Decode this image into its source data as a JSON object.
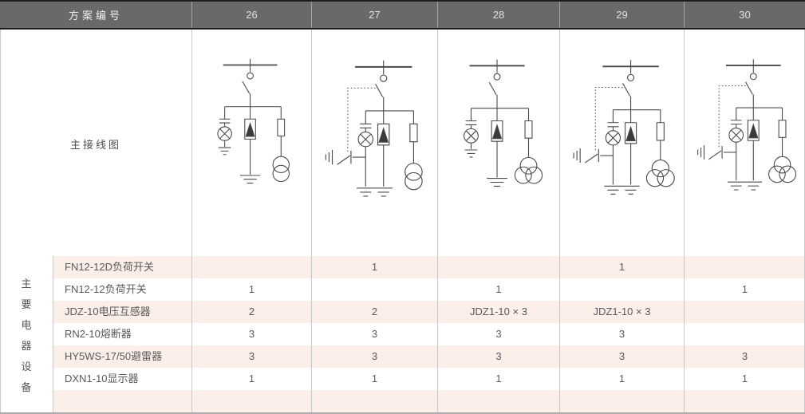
{
  "header": {
    "label": "方案编号",
    "schemes": [
      "26",
      "27",
      "28",
      "29",
      "30"
    ]
  },
  "main_diagram_label": "主接线图",
  "equipment": {
    "section_label": "主要电器设备",
    "section_label_chars": [
      "主",
      "要",
      "电",
      "器",
      "设",
      "备"
    ],
    "rows": [
      {
        "name": "FN12-12D负荷开关",
        "values": [
          "",
          "1",
          "",
          "1",
          ""
        ]
      },
      {
        "name": "FN12-12负荷开关",
        "values": [
          "1",
          "",
          "1",
          "",
          "1"
        ]
      },
      {
        "name": "JDZ-10电压互感器",
        "values": [
          "2",
          "2",
          "JDZ1-10 × 3",
          "JDZ1-10 × 3",
          ""
        ]
      },
      {
        "name": "RN2-10熔断器",
        "values": [
          "3",
          "3",
          "3",
          "3",
          ""
        ]
      },
      {
        "name": "HY5WS-17/50避雷器",
        "values": [
          "3",
          "3",
          "3",
          "3",
          "3"
        ]
      },
      {
        "name": "DXN1-10显示器",
        "values": [
          "1",
          "1",
          "1",
          "1",
          "1"
        ]
      },
      {
        "name": "",
        "values": [
          "",
          "",
          "",
          "",
          ""
        ]
      }
    ]
  },
  "diagrams": [
    {
      "scheme": "26",
      "earthing_switch": false,
      "transformer_windings": 2
    },
    {
      "scheme": "27",
      "earthing_switch": true,
      "transformer_windings": 2
    },
    {
      "scheme": "28",
      "earthing_switch": false,
      "transformer_windings": 3
    },
    {
      "scheme": "29",
      "earthing_switch": true,
      "transformer_windings": 3
    },
    {
      "scheme": "30",
      "earthing_switch": true,
      "transformer_windings": 3
    }
  ],
  "colors": {
    "header-bg": "#696969",
    "header-text": "#e2e2e2",
    "stripe-pink": "#fceee9",
    "grid-line": "#c9c9c9",
    "text": "#595959",
    "diagram-stroke": "#4a4a4a",
    "border-dark": "#1c1c1c",
    "border-bottom": "#a9a9a9"
  }
}
